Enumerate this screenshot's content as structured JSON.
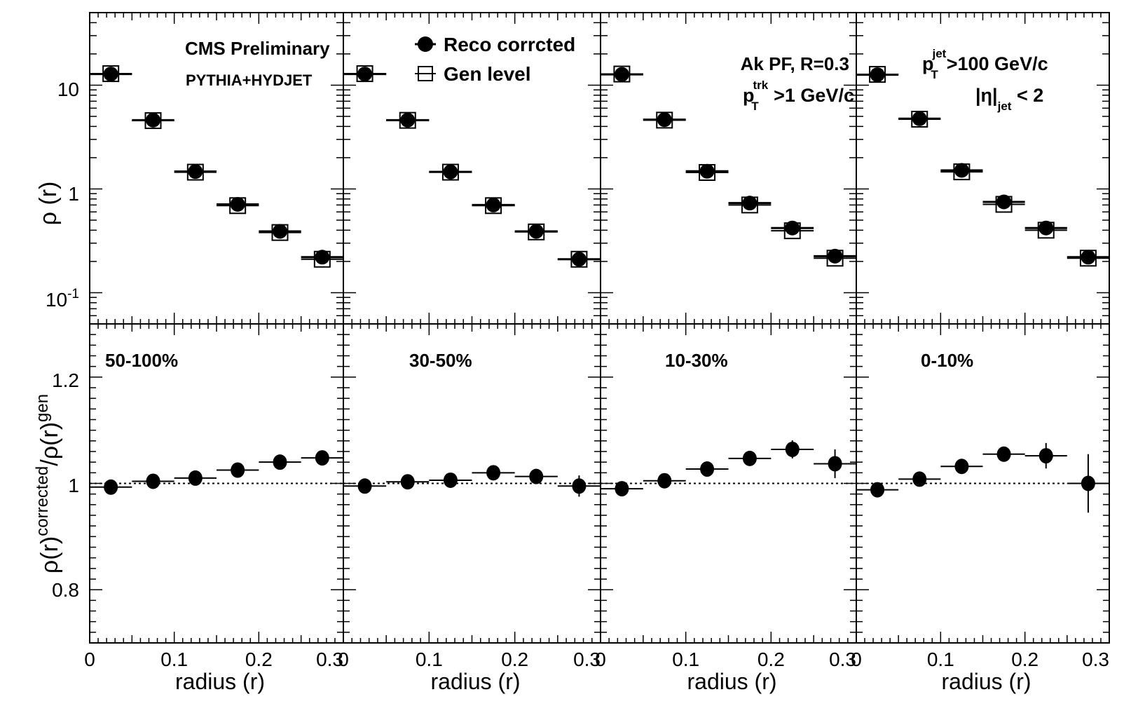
{
  "figure": {
    "collaboration": "CMS Preliminary",
    "generator": "PYTHIA+HYDJET",
    "jet_algo": "Ak PF, R=0.3",
    "trk_cut": {
      "base": "p",
      "sub": "T",
      "sup": "trk",
      "rest": " >1 GeV/c"
    },
    "jet_cut": {
      "base": "p",
      "sub": "T",
      "sup": "jet",
      "rest": ">100 GeV/c"
    },
    "eta_cut": {
      "base": "|η|",
      "sub": "jet",
      "rest": " < 2"
    }
  },
  "chart_data": [
    {
      "type": "scatter",
      "panel": "top",
      "ylabel": "ρ (r)",
      "yscale": "log",
      "ylim": [
        0.05,
        50
      ],
      "xlabel": "radius (r)",
      "xlim": [
        0,
        0.3
      ],
      "ytick_labels": [
        "10",
        "1",
        "10-1"
      ],
      "xtick_labels": [
        "0",
        "0.1",
        "0.2",
        "0.3"
      ],
      "legend": [
        {
          "name": "Reco corrcted",
          "marker": "filled-circle"
        },
        {
          "name": "Gen level",
          "marker": "open-square"
        }
      ],
      "centrality_bins": [
        "50-100%",
        "30-50%",
        "10-30%",
        "0-10%"
      ],
      "x": [
        0.025,
        0.075,
        0.125,
        0.175,
        0.225,
        0.275
      ],
      "series": [
        {
          "name": "Reco corrcted",
          "centrality": "50-100%",
          "values": [
            12.8,
            4.6,
            1.47,
            0.71,
            0.39,
            0.22
          ]
        },
        {
          "name": "Gen level",
          "centrality": "50-100%",
          "values": [
            12.9,
            4.55,
            1.45,
            0.69,
            0.38,
            0.21
          ]
        },
        {
          "name": "Reco corrcted",
          "centrality": "30-50%",
          "values": [
            12.8,
            4.6,
            1.46,
            0.7,
            0.39,
            0.21
          ]
        },
        {
          "name": "Gen level",
          "centrality": "30-50%",
          "values": [
            12.9,
            4.58,
            1.45,
            0.69,
            0.385,
            0.21
          ]
        },
        {
          "name": "Reco corrcted",
          "centrality": "10-30%",
          "values": [
            12.7,
            4.65,
            1.48,
            0.73,
            0.42,
            0.225
          ]
        },
        {
          "name": "Gen level",
          "centrality": "10-30%",
          "values": [
            12.8,
            4.6,
            1.44,
            0.7,
            0.395,
            0.215
          ]
        },
        {
          "name": "Reco corrcted",
          "centrality": "0-10%",
          "values": [
            12.6,
            4.75,
            1.51,
            0.75,
            0.42,
            0.22
          ]
        },
        {
          "name": "Gen level",
          "centrality": "0-10%",
          "values": [
            12.7,
            4.7,
            1.46,
            0.71,
            0.4,
            0.215
          ]
        }
      ]
    },
    {
      "type": "scatter",
      "panel": "bottom",
      "ylabel": {
        "base": "ρ(r)",
        "sup1": "corrected",
        "mid": "/ρ(r)",
        "sup2": "gen"
      },
      "ylim": [
        0.7,
        1.3
      ],
      "ytick_labels": [
        "1.2",
        "1",
        "0.8"
      ],
      "reference_line": 1.0,
      "xlabel": "radius (r)",
      "xlim": [
        0,
        0.3
      ],
      "xtick_labels": [
        "0",
        "0.1",
        "0.2",
        "0.3"
      ],
      "x": [
        0.025,
        0.075,
        0.125,
        0.175,
        0.225,
        0.275
      ],
      "series": [
        {
          "name": "50-100%",
          "values": [
            0.993,
            1.004,
            1.01,
            1.025,
            1.04,
            1.048
          ],
          "errors": [
            0.005,
            0.005,
            0.006,
            0.007,
            0.009,
            0.012
          ]
        },
        {
          "name": "30-50%",
          "values": [
            0.995,
            1.003,
            1.006,
            1.02,
            1.013,
            0.995
          ],
          "errors": [
            0.005,
            0.005,
            0.006,
            0.007,
            0.009,
            0.02
          ]
        },
        {
          "name": "10-30%",
          "values": [
            0.99,
            1.005,
            1.027,
            1.047,
            1.064,
            1.037
          ],
          "errors": [
            0.005,
            0.006,
            0.008,
            0.009,
            0.017,
            0.027
          ]
        },
        {
          "name": "0-10%",
          "values": [
            0.988,
            1.008,
            1.032,
            1.055,
            1.052,
            1.0
          ],
          "errors": [
            0.006,
            0.007,
            0.008,
            0.013,
            0.024,
            0.055
          ]
        }
      ]
    }
  ]
}
